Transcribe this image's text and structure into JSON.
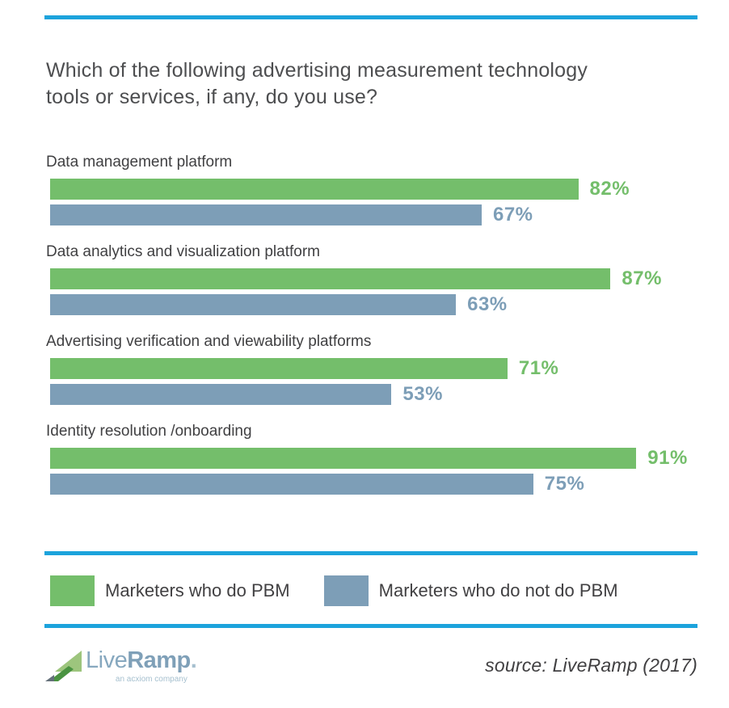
{
  "page": {
    "title": "Which of the following advertising measurement technology tools or services, if any, do you use?",
    "title_lines": [
      "Which of the following advertising measurement technology",
      "tools or services, if any, do you use?"
    ]
  },
  "chart_data": {
    "type": "bar",
    "orientation": "horizontal",
    "title": "Which of the following advertising measurement technology tools or services, if any, do you use?",
    "categories": [
      "Data management platform",
      "Data analytics and visualization platform",
      "Advertising verification and viewability platforms",
      "Identity resolution /onboarding"
    ],
    "series": [
      {
        "name": "Marketers who do PBM",
        "color": "#74BE6B",
        "values": [
          82,
          87,
          71,
          91
        ]
      },
      {
        "name": "Marketers who do not do PBM",
        "color": "#7D9EB7",
        "values": [
          67,
          63,
          53,
          75
        ]
      }
    ],
    "value_suffix": "%",
    "xlim": [
      0,
      100
    ],
    "grid": false,
    "axis_labels_shown": false,
    "legend_position": "bottom"
  },
  "legend": {
    "items": [
      {
        "label": "Marketers who do PBM",
        "color": "#74BE6B"
      },
      {
        "label": "Marketers who do not do PBM",
        "color": "#7D9EB7"
      }
    ]
  },
  "footer": {
    "logo": {
      "live": "Live",
      "ramp": "Ramp",
      "period": ".",
      "tagline": "an acxiom company",
      "mark": {
        "light": "#9DC57D",
        "dark": "#4A9341",
        "gray": "#64707A"
      }
    },
    "source": "source: LiveRamp (2017)"
  },
  "colors": {
    "rule_blue": "#1CA3DC",
    "green": "#74BE6B",
    "blue_gray": "#7D9EB7",
    "title_text": "#4D4E50",
    "label_text": "#404042",
    "logo_live": "#87A8BF",
    "logo_ramp": "#7FA0B8",
    "logo_tagline": "#A6C0CF"
  }
}
